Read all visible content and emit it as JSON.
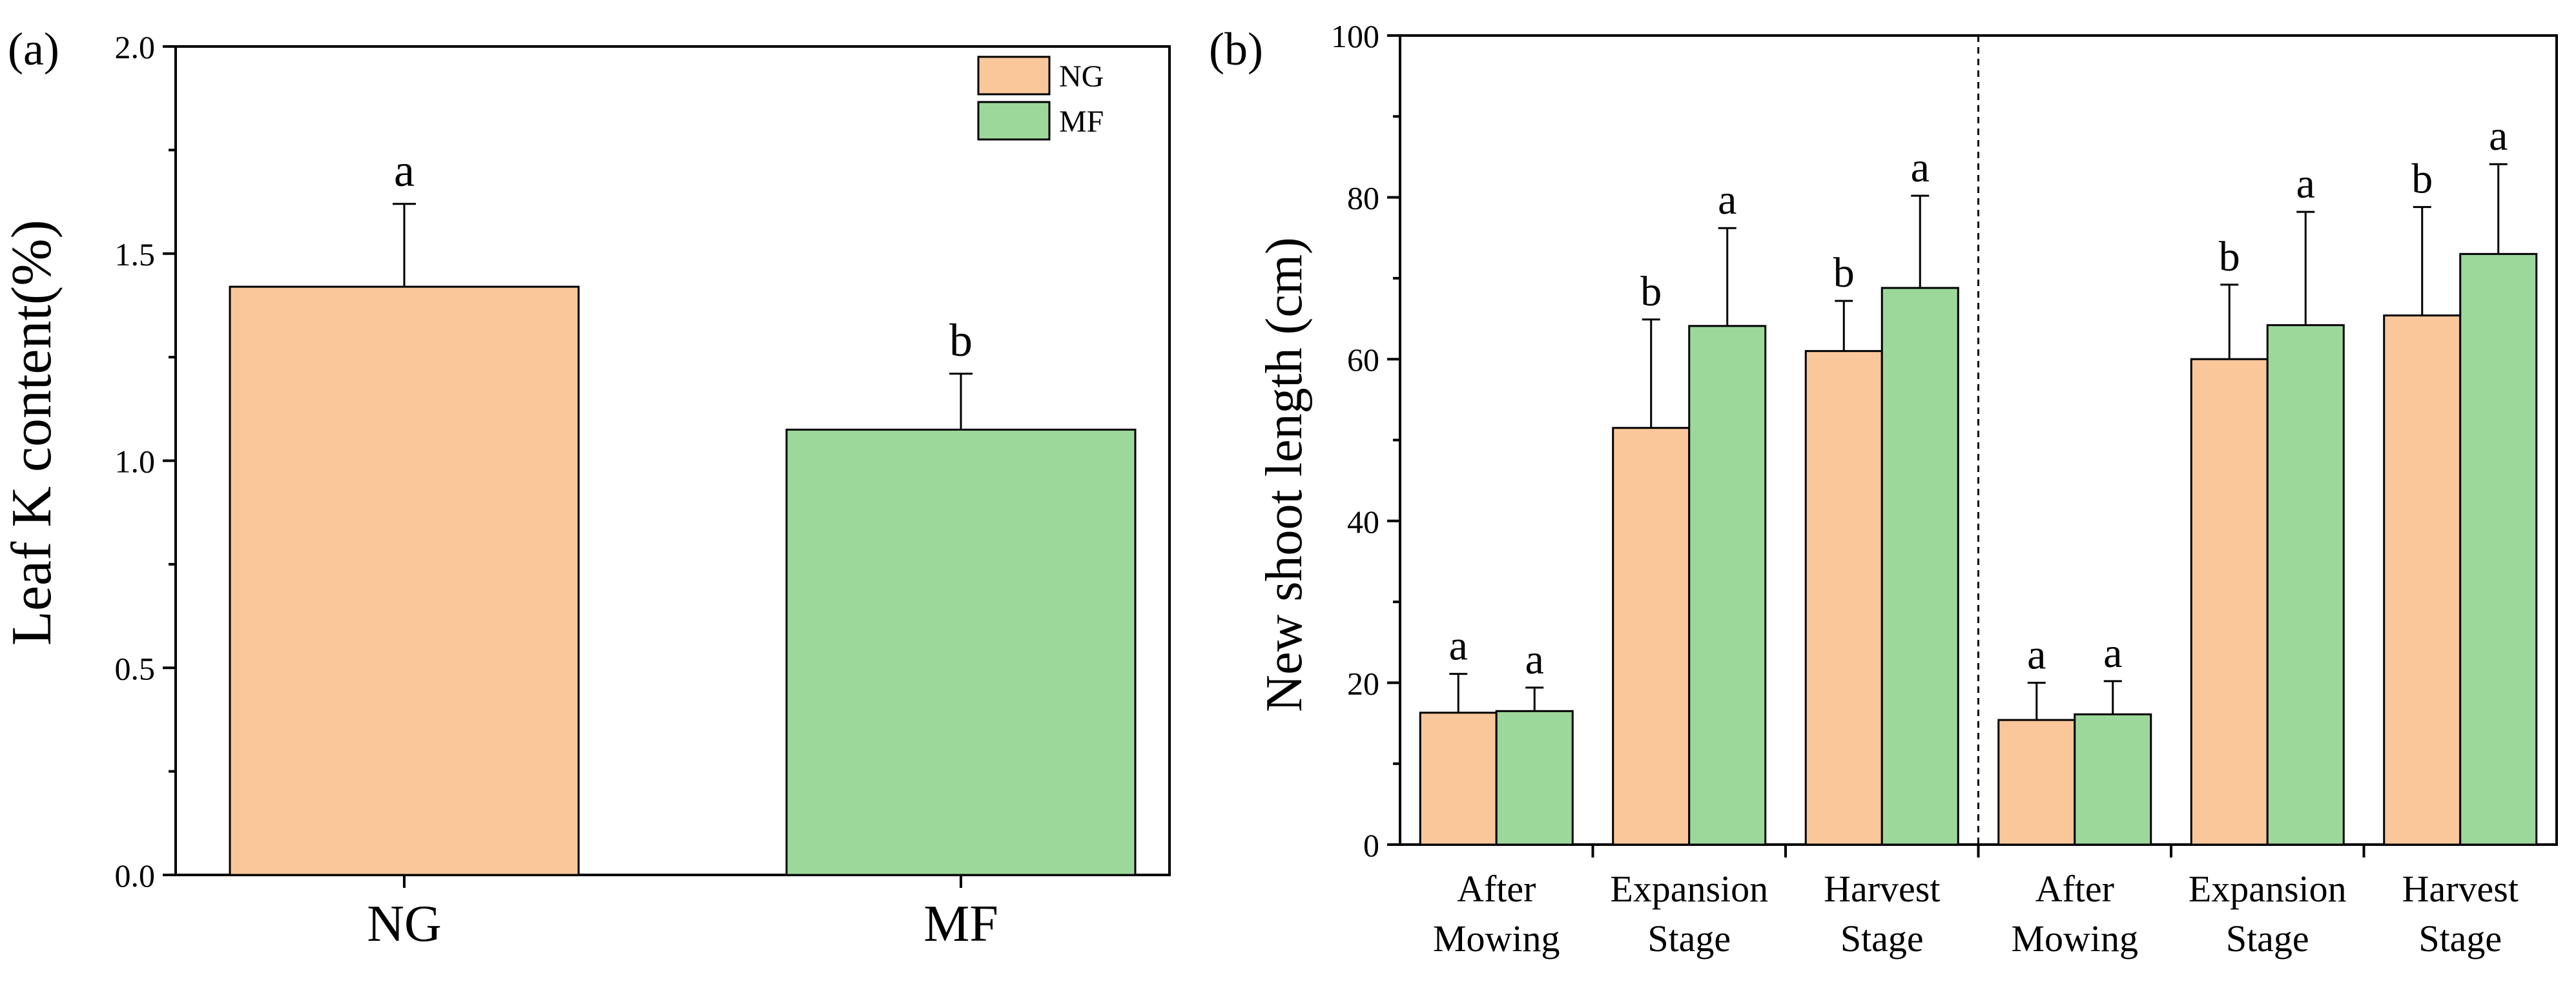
{
  "colors": {
    "NG": "#F9C79A",
    "MF": "#9DD89B",
    "axis": "#000000"
  },
  "chart_data": [
    {
      "type": "bar",
      "panel_label": "(a)",
      "title": "",
      "xlabel": "",
      "ylabel": "Leaf K content(%)",
      "ylim": [
        0,
        2.0
      ],
      "yticks": [
        0.0,
        0.5,
        1.0,
        1.5,
        2.0
      ],
      "ytick_labels": [
        "0.0",
        "0.5",
        "1.0",
        "1.5",
        "2.0"
      ],
      "categories": [
        "NG",
        "MF"
      ],
      "values": [
        1.42,
        1.075
      ],
      "errors": [
        0.2,
        0.135
      ],
      "sig_letters": [
        "a",
        "b"
      ],
      "legend": {
        "position": "top-right",
        "entries": [
          "NG",
          "MF"
        ]
      }
    },
    {
      "type": "bar",
      "panel_label": "(b)",
      "title": "",
      "xlabel": "",
      "ylabel": "New shoot length (cm)",
      "ylim": [
        0,
        100
      ],
      "yticks": [
        0,
        20,
        40,
        60,
        80,
        100
      ],
      "ytick_labels": [
        "0",
        "20",
        "40",
        "60",
        "80",
        "100"
      ],
      "categories": [
        [
          "After",
          "Mowing"
        ],
        [
          "Expansion",
          "Stage"
        ],
        [
          "Harvest",
          "Stage"
        ],
        [
          "After",
          "Mowing"
        ],
        [
          "Expansion",
          "Stage"
        ],
        [
          "Harvest",
          "Stage"
        ]
      ],
      "series": [
        {
          "name": "NG",
          "values": [
            16.3,
            51.5,
            61.0,
            15.4,
            60.0,
            65.4
          ],
          "errors": [
            4.8,
            13.4,
            6.2,
            4.6,
            9.2,
            13.4
          ],
          "sig_letters": [
            "a",
            "b",
            "b",
            "a",
            "b",
            "b"
          ]
        },
        {
          "name": "MF",
          "values": [
            16.5,
            64.1,
            68.8,
            16.1,
            64.2,
            73.0
          ],
          "errors": [
            2.9,
            12.1,
            11.4,
            4.1,
            14.0,
            11.1
          ],
          "sig_letters": [
            "a",
            "a",
            "a",
            "a",
            "a",
            "a"
          ]
        }
      ],
      "divider_after_category": 3
    }
  ]
}
